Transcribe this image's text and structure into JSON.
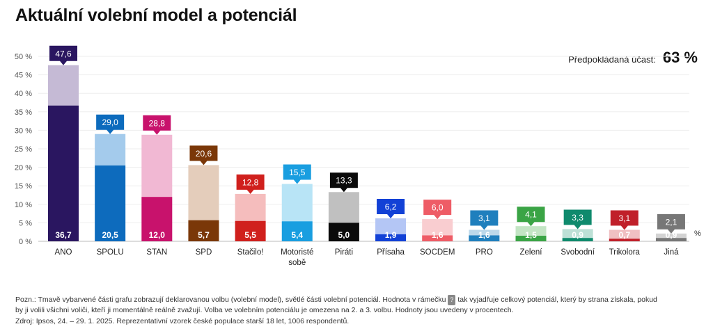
{
  "title": "Aktuální volební model a potenciál",
  "turnout": {
    "label": "Předpokládaná účast:",
    "value": "63 %"
  },
  "chart_data": {
    "type": "bar",
    "subtype": "stacked-overlay",
    "ylim": [
      0,
      50
    ],
    "yticks": [
      "0 %",
      "5 %",
      "10 %",
      "15 %",
      "20 %",
      "25 %",
      "30 %",
      "35 %",
      "40 %",
      "45 %",
      "50 %"
    ],
    "grid": true,
    "pct_marker": "%",
    "categories": [
      "ANO",
      "SPOLU",
      "STAN",
      "SPD",
      "Stačilo!",
      "Motoristé sobě",
      "Piráti",
      "Přísaha",
      "SOCDEM",
      "PRO",
      "Zelení",
      "Svobodní",
      "Trikolora",
      "Jiná"
    ],
    "model": [
      36.7,
      20.5,
      12.0,
      5.7,
      5.5,
      5.4,
      5.0,
      1.9,
      1.6,
      1.6,
      1.5,
      0.9,
      0.7,
      0.9
    ],
    "potential": [
      47.6,
      29.0,
      28.8,
      20.6,
      12.8,
      15.5,
      13.3,
      6.2,
      6.0,
      3.1,
      4.1,
      3.3,
      3.1,
      2.1
    ],
    "model_labels": [
      "36,7",
      "20,5",
      "12,0",
      "5,7",
      "5,5",
      "5,4",
      "5,0",
      "1,9",
      "1,6",
      "1,6",
      "1,5",
      "0,9",
      "0,7",
      "0,9"
    ],
    "potential_labels": [
      "47,6",
      "29,0",
      "28,8",
      "20,6",
      "12,8",
      "15,5",
      "13,3",
      "6,2",
      "6,0",
      "3,1",
      "4,1",
      "3,3",
      "3,1",
      "2,1"
    ],
    "colors_dark": [
      "#2a1660",
      "#0d6bbd",
      "#c8126c",
      "#7a3708",
      "#d0201d",
      "#199ee0",
      "#0a0a0a",
      "#1241d6",
      "#ee5c66",
      "#1f7fbd",
      "#3aa445",
      "#0f8a6d",
      "#c0202a",
      "#777777"
    ],
    "colors_light": [
      "#c5bad5",
      "#a4cbec",
      "#f1b8d3",
      "#e4cdbb",
      "#f5bdbd",
      "#b8e4f6",
      "#c0c0c0",
      "#b4c6f5",
      "#f9cdd0",
      "#bcd8ea",
      "#c3e5c4",
      "#bde0d6",
      "#f0c0c3",
      "#d3d3d3"
    ]
  },
  "note": "Pozn.: Tmavě vybarvené části grafu zobrazují deklarovanou volbu (volební model), světlé části volební potenciál. Hodnota v rámečku",
  "note_box": "?",
  "note_rest": "tak vyjadřuje celkový potenciál, který by strana získala, pokud by ji volili všichni voliči, kteří ji momentálně reálně zvažují. Volba ve volebním potenciálu je omezena na 2. a 3. volbu. Hodnoty jsou uvedeny v procentech.",
  "source": "Zdroj: Ipsos, 24. – 29. 1. 2025. Reprezentativní vzorek české populace starší 18 let, 1006 respondentů."
}
